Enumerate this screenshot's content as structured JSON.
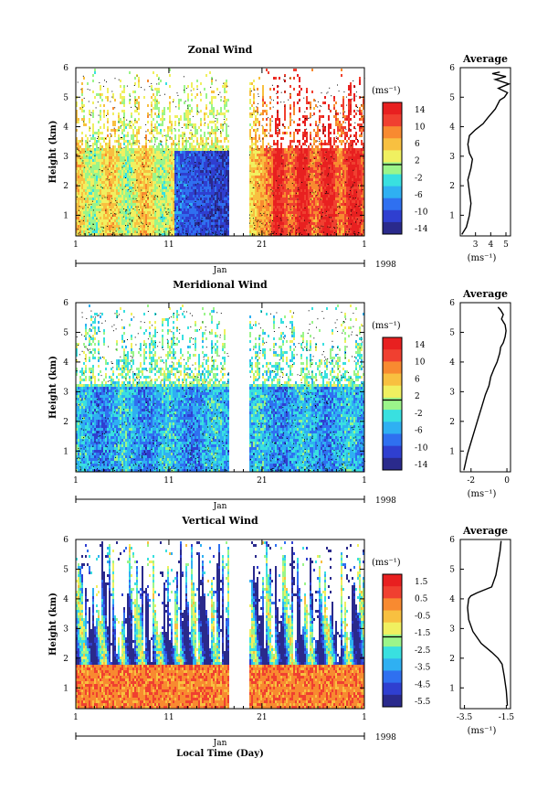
{
  "xaxis": {
    "ticks": [
      "1",
      "11",
      "21",
      "1"
    ],
    "month": "Jan",
    "year": "1998",
    "label": "Local Time (Day)"
  },
  "yaxis": {
    "label": "Height (km)",
    "ticks": [
      "1",
      "2",
      "3",
      "4",
      "5",
      "6"
    ]
  },
  "profile_title": "Average",
  "unit_label": "(ms⁻¹)",
  "colorscale": [
    "#2a2a8c",
    "#2f3fd0",
    "#2f70f0",
    "#2fb0f2",
    "#39e0e0",
    "#9bf58a",
    "#f0f060",
    "#f8c040",
    "#f88a30",
    "#f04030",
    "#e82020"
  ],
  "chart_data": [
    {
      "type": "heatmap",
      "title": "Zonal Wind",
      "ylabel": "Height (km)",
      "xlabel": "",
      "x_range_day": [
        1,
        32
      ],
      "data_gap_days": [
        17.4,
        19.6
      ],
      "ylim_km": [
        0.3,
        6
      ],
      "colorbar": {
        "ticks": [
          "14",
          "10",
          "6",
          "2",
          "-2",
          "-6",
          "-10",
          "-14"
        ],
        "range": [
          -16,
          16
        ]
      },
      "pattern": "weak westerly (2–6 ms⁻¹) days 1–11, easterly (-6 to -14) days 12–17 below 3 km, strong westerly (10–14+) days 22–32"
    },
    {
      "type": "heatmap",
      "title": "Meridional Wind",
      "ylabel": "Height (km)",
      "xlabel": "",
      "x_range_day": [
        1,
        32
      ],
      "data_gap_days": [
        17.4,
        19.6
      ],
      "ylim_km": [
        0.3,
        6
      ],
      "colorbar": {
        "ticks": [
          "14",
          "10",
          "6",
          "2",
          "-2",
          "-6",
          "-10",
          "-14"
        ],
        "range": [
          -16,
          16
        ]
      },
      "pattern": "mostly northerly (-2 to -10 ms⁻¹) below 3 km throughout period"
    },
    {
      "type": "heatmap",
      "title": "Vertical Wind",
      "ylabel": "Height (km)",
      "xlabel": "Local Time (Day)",
      "x_range_day": [
        1,
        32
      ],
      "data_gap_days": [
        17.4,
        19.6
      ],
      "ylim_km": [
        0.3,
        6
      ],
      "colorbar": {
        "ticks": [
          "1.5",
          "0.5",
          "-0.5",
          "-1.5",
          "-2.5",
          "-3.5",
          "-4.5",
          "-5.5"
        ],
        "range": [
          -6,
          2
        ]
      },
      "pattern": "near 0 to +1 ms⁻¹ below ~1.8 km, strongly negative bands aloft"
    },
    {
      "type": "line",
      "title": "Average",
      "xlabel": "(ms⁻¹)",
      "ylabel": "",
      "xticks": [
        "3",
        "4",
        "5"
      ],
      "xlim": [
        2.0,
        5.3
      ],
      "ylim_km": [
        0.3,
        6
      ],
      "x": [
        2.1,
        2.4,
        2.6,
        2.7,
        2.6,
        2.5,
        2.7,
        2.8,
        2.6,
        2.5,
        2.6,
        3.0,
        3.5,
        3.8,
        4.3,
        4.6,
        4.9,
        5.1,
        4.5,
        5.2,
        4.3,
        5.0,
        4.1,
        4.6
      ],
      "y": [
        0.35,
        0.6,
        1.0,
        1.4,
        1.8,
        2.2,
        2.6,
        2.9,
        3.1,
        3.4,
        3.7,
        3.9,
        4.1,
        4.3,
        4.6,
        4.9,
        5.0,
        5.15,
        5.3,
        5.45,
        5.6,
        5.7,
        5.8,
        5.85
      ]
    },
    {
      "type": "line",
      "title": "Average",
      "xlabel": "(ms⁻¹)",
      "ylabel": "",
      "xticks": [
        "-2",
        "0"
      ],
      "xlim": [
        -2.6,
        0.2
      ],
      "ylim_km": [
        0.3,
        6
      ],
      "x": [
        -2.4,
        -2.2,
        -2.0,
        -1.8,
        -1.6,
        -1.4,
        -1.2,
        -1.0,
        -0.9,
        -0.7,
        -0.55,
        -0.4,
        -0.35,
        -0.2,
        -0.1,
        -0.05,
        -0.1,
        -0.3,
        -0.2,
        -0.35,
        -0.5
      ],
      "y": [
        0.35,
        0.9,
        1.3,
        1.7,
        2.1,
        2.5,
        2.9,
        3.2,
        3.5,
        3.8,
        4.0,
        4.3,
        4.5,
        4.65,
        4.85,
        5.05,
        5.25,
        5.45,
        5.6,
        5.75,
        5.85
      ]
    },
    {
      "type": "line",
      "title": "Average",
      "xlabel": "(ms⁻¹)",
      "ylabel": "",
      "xticks": [
        "-3.5",
        "-1.5"
      ],
      "xlim": [
        -3.7,
        -1.3
      ],
      "ylim_km": [
        0.3,
        6
      ],
      "x": [
        -1.45,
        -1.5,
        -1.6,
        -1.7,
        -1.9,
        -2.2,
        -2.7,
        -3.1,
        -3.3,
        -3.35,
        -3.3,
        -3.2,
        -2.9,
        -2.2,
        -2.0,
        -1.9,
        -1.8,
        -1.75
      ],
      "y": [
        0.4,
        0.9,
        1.4,
        1.8,
        2.0,
        2.2,
        2.5,
        2.9,
        3.3,
        3.7,
        4.0,
        4.1,
        4.2,
        4.4,
        4.8,
        5.2,
        5.6,
        5.95
      ]
    }
  ]
}
